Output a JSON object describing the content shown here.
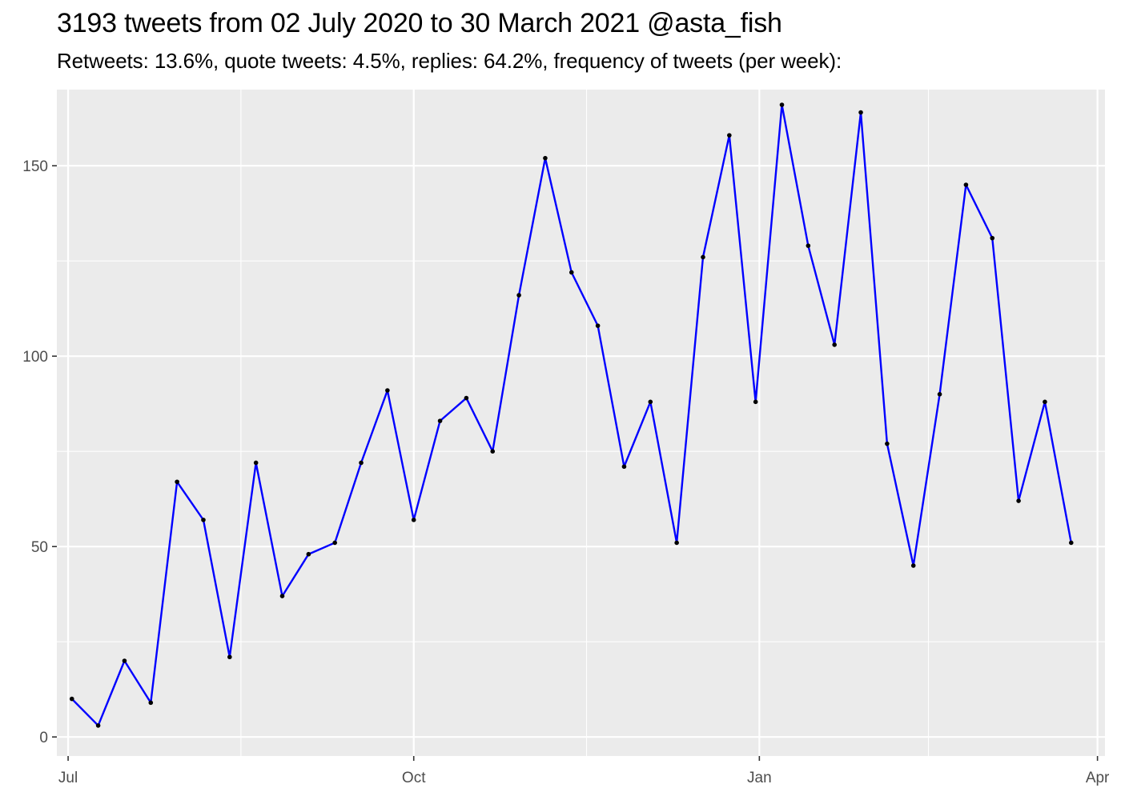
{
  "chart_data": {
    "type": "line",
    "title": "3193 tweets from 02 July 2020 to 30 March 2021 @asta_fish",
    "subtitle": "Retweets: 13.6%, quote tweets: 4.5%, replies: 64.2%, frequency of tweets (per week):",
    "xlabel": "",
    "ylabel": "",
    "x_axis_type": "date",
    "xlim": [
      "2020-06-28",
      "2021-04-03"
    ],
    "ylim": [
      -5,
      170
    ],
    "x_ticks": [
      {
        "date": "2020-07-01",
        "label": "Jul"
      },
      {
        "date": "2020-10-01",
        "label": "Oct"
      },
      {
        "date": "2021-01-01",
        "label": "Jan"
      },
      {
        "date": "2021-04-01",
        "label": "Apr"
      }
    ],
    "y_ticks": [
      0,
      50,
      100,
      150
    ],
    "grid": true,
    "legend": "none",
    "colors": {
      "line": "#0000ff",
      "points": "#000000",
      "panel_background": "#ebebeb",
      "grid": "#ffffff"
    },
    "series": [
      {
        "points": [
          {
            "x": "2020-07-02",
            "y": 10
          },
          {
            "x": "2020-07-09",
            "y": 3
          },
          {
            "x": "2020-07-16",
            "y": 20
          },
          {
            "x": "2020-07-23",
            "y": 9
          },
          {
            "x": "2020-07-30",
            "y": 67
          },
          {
            "x": "2020-08-06",
            "y": 57
          },
          {
            "x": "2020-08-13",
            "y": 21
          },
          {
            "x": "2020-08-20",
            "y": 72
          },
          {
            "x": "2020-08-27",
            "y": 37
          },
          {
            "x": "2020-09-03",
            "y": 48
          },
          {
            "x": "2020-09-10",
            "y": 51
          },
          {
            "x": "2020-09-17",
            "y": 72
          },
          {
            "x": "2020-09-24",
            "y": 91
          },
          {
            "x": "2020-10-01",
            "y": 57
          },
          {
            "x": "2020-10-08",
            "y": 83
          },
          {
            "x": "2020-10-15",
            "y": 89
          },
          {
            "x": "2020-10-22",
            "y": 75
          },
          {
            "x": "2020-10-29",
            "y": 116
          },
          {
            "x": "2020-11-05",
            "y": 152
          },
          {
            "x": "2020-11-12",
            "y": 122
          },
          {
            "x": "2020-11-19",
            "y": 108
          },
          {
            "x": "2020-11-26",
            "y": 71
          },
          {
            "x": "2020-12-03",
            "y": 88
          },
          {
            "x": "2020-12-10",
            "y": 51
          },
          {
            "x": "2020-12-17",
            "y": 126
          },
          {
            "x": "2020-12-24",
            "y": 158
          },
          {
            "x": "2020-12-31",
            "y": 88
          },
          {
            "x": "2021-01-07",
            "y": 166
          },
          {
            "x": "2021-01-14",
            "y": 129
          },
          {
            "x": "2021-01-21",
            "y": 103
          },
          {
            "x": "2021-01-28",
            "y": 164
          },
          {
            "x": "2021-02-04",
            "y": 77
          },
          {
            "x": "2021-02-11",
            "y": 45
          },
          {
            "x": "2021-02-18",
            "y": 90
          },
          {
            "x": "2021-02-25",
            "y": 145
          },
          {
            "x": "2021-03-04",
            "y": 131
          },
          {
            "x": "2021-03-11",
            "y": 62
          },
          {
            "x": "2021-03-18",
            "y": 88
          },
          {
            "x": "2021-03-25",
            "y": 51
          }
        ]
      }
    ]
  }
}
